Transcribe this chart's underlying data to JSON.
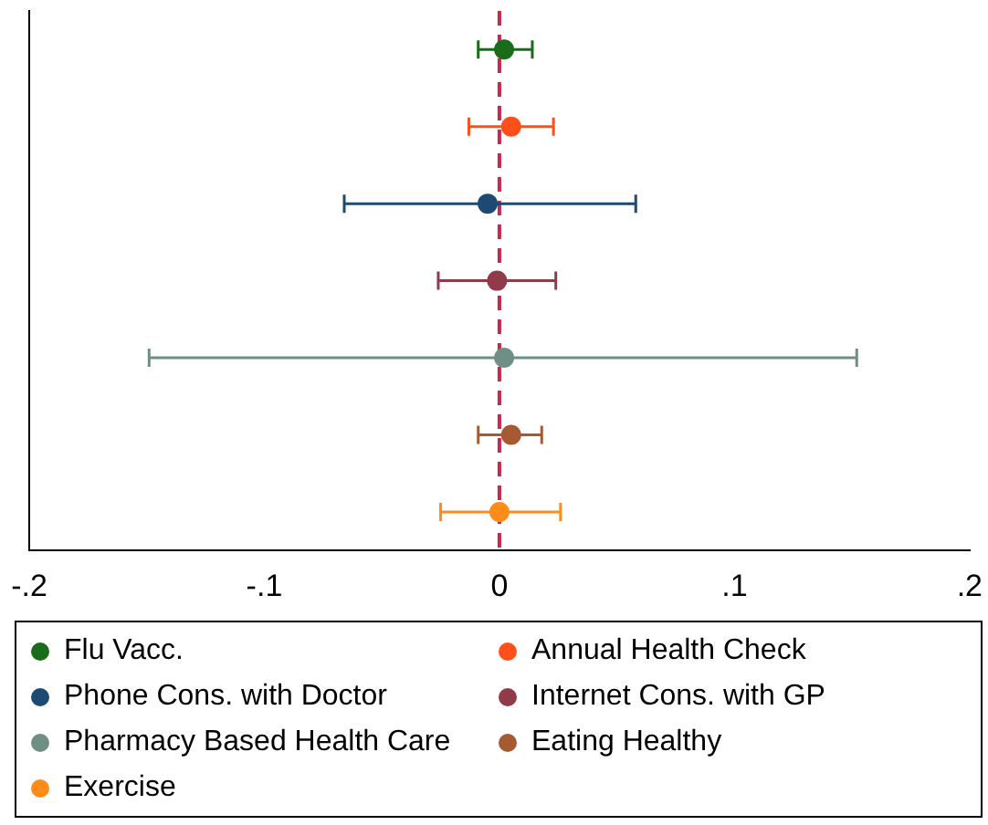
{
  "chart_data": {
    "type": "scatter",
    "orientation": "horizontal",
    "categories": [
      null,
      null,
      null,
      null,
      null,
      null,
      null
    ],
    "xlim": [
      -0.2,
      0.2
    ],
    "xticks": [
      {
        "value": -0.2,
        "label": "-.2"
      },
      {
        "value": -0.1,
        "label": "-.1"
      },
      {
        "value": 0,
        "label": "0"
      },
      {
        "value": 0.1,
        "label": ".1"
      },
      {
        "value": 0.2,
        "label": ".2"
      }
    ],
    "grid": false,
    "legend": "bottom",
    "marker": "circle",
    "ref_lines": [
      {
        "axis": "x",
        "value": 0,
        "color": "#c8284e",
        "line_style": "dashed"
      }
    ],
    "series": [
      {
        "name": "Flu Vacc.",
        "color": "#1a6b1a",
        "values": [
          0.002,
          null,
          null,
          null,
          null,
          null,
          null
        ],
        "errors": [
          [
            -0.009,
            0.014
          ],
          null,
          null,
          null,
          null,
          null,
          null
        ]
      },
      {
        "name": "Annual Health Check",
        "color": "#ff4f1a",
        "values": [
          null,
          0.005,
          null,
          null,
          null,
          null,
          null
        ],
        "errors": [
          null,
          [
            -0.013,
            0.023
          ],
          null,
          null,
          null,
          null,
          null
        ]
      },
      {
        "name": "Phone Cons. with Doctor",
        "color": "#1c4a72",
        "values": [
          null,
          null,
          -0.005,
          null,
          null,
          null,
          null
        ],
        "errors": [
          null,
          null,
          [
            -0.066,
            0.058
          ],
          null,
          null,
          null,
          null
        ]
      },
      {
        "name": "Internet Cons. with GP",
        "color": "#903a4a",
        "values": [
          null,
          null,
          null,
          -0.001,
          null,
          null,
          null
        ],
        "errors": [
          null,
          null,
          null,
          [
            -0.026,
            0.024
          ],
          null,
          null,
          null
        ]
      },
      {
        "name": "Pharmacy Based Health Care",
        "color": "#6f8f86",
        "values": [
          null,
          null,
          null,
          null,
          0.002,
          null,
          null
        ],
        "errors": [
          null,
          null,
          null,
          null,
          [
            -0.149,
            0.152
          ],
          null,
          null
        ]
      },
      {
        "name": "Eating Healthy",
        "color": "#a65a32",
        "values": [
          null,
          null,
          null,
          null,
          null,
          0.005,
          null
        ],
        "errors": [
          null,
          null,
          null,
          null,
          null,
          [
            -0.009,
            0.018
          ],
          null
        ]
      },
      {
        "name": "Exercise",
        "color": "#ff8c1a",
        "values": [
          null,
          null,
          null,
          null,
          null,
          null,
          0
        ],
        "errors": [
          null,
          null,
          null,
          null,
          null,
          null,
          [
            -0.025,
            0.026
          ]
        ]
      }
    ]
  }
}
